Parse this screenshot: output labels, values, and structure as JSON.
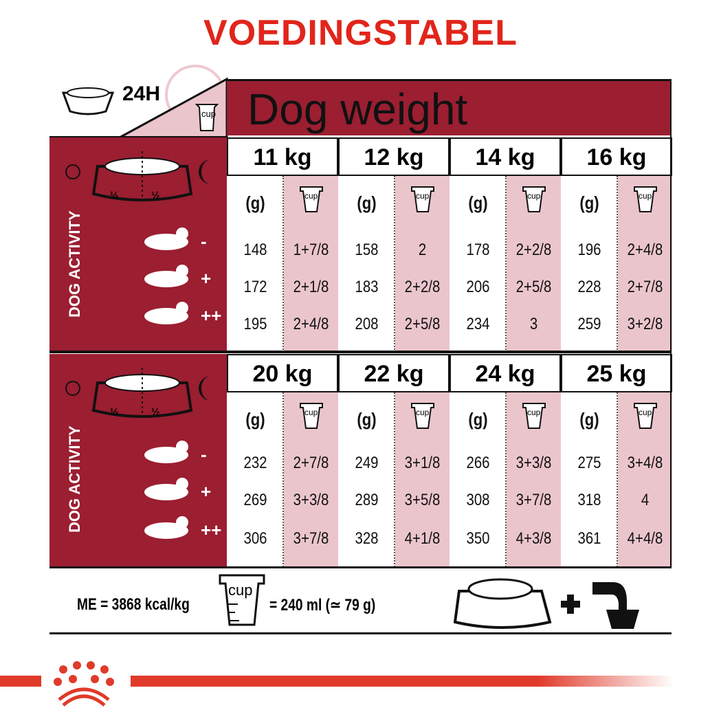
{
  "title": "VOEDINGSTABEL",
  "corner": {
    "label": "24H",
    "cup": "cup"
  },
  "header": "Dog weight",
  "left_panel": {
    "label": "DOG ACTIVITY",
    "half": "½",
    "levels": [
      "-",
      "+",
      "++"
    ]
  },
  "units": {
    "grams": "(g)",
    "cup": "cup"
  },
  "sections": [
    {
      "weights": [
        {
          "weight": "11 kg",
          "grams": [
            "148",
            "172",
            "195"
          ],
          "cups": [
            "1+7/8",
            "2+1/8",
            "2+4/8"
          ]
        },
        {
          "weight": "12 kg",
          "grams": [
            "158",
            "183",
            "208"
          ],
          "cups": [
            "2",
            "2+2/8",
            "2+5/8"
          ]
        },
        {
          "weight": "14 kg",
          "grams": [
            "178",
            "206",
            "234"
          ],
          "cups": [
            "2+2/8",
            "2+5/8",
            "3"
          ]
        },
        {
          "weight": "16 kg",
          "grams": [
            "196",
            "228",
            "259"
          ],
          "cups": [
            "2+4/8",
            "2+7/8",
            "3+2/8"
          ]
        }
      ]
    },
    {
      "weights": [
        {
          "weight": "20 kg",
          "grams": [
            "232",
            "269",
            "306"
          ],
          "cups": [
            "2+7/8",
            "3+3/8",
            "3+7/8"
          ]
        },
        {
          "weight": "22 kg",
          "grams": [
            "249",
            "289",
            "328"
          ],
          "cups": [
            "3+1/8",
            "3+5/8",
            "4+1/8"
          ]
        },
        {
          "weight": "24 kg",
          "grams": [
            "266",
            "308",
            "350"
          ],
          "cups": [
            "3+3/8",
            "3+7/8",
            "4+3/8"
          ]
        },
        {
          "weight": "25 kg",
          "grams": [
            "275",
            "318",
            "361"
          ],
          "cups": [
            "3+4/8",
            "4",
            "4+4/8"
          ]
        }
      ]
    }
  ],
  "footer": {
    "energy": "ME = 3868 kcal/kg",
    "cup": "cup",
    "cup_equiv": "= 240 ml (≃ 79 g)",
    "plus": "+"
  },
  "colors": {
    "title": "#e1251b",
    "panel": "#9b1e31",
    "cup_column": "#ebc5cc",
    "brand_bar": "#e03a2a"
  }
}
